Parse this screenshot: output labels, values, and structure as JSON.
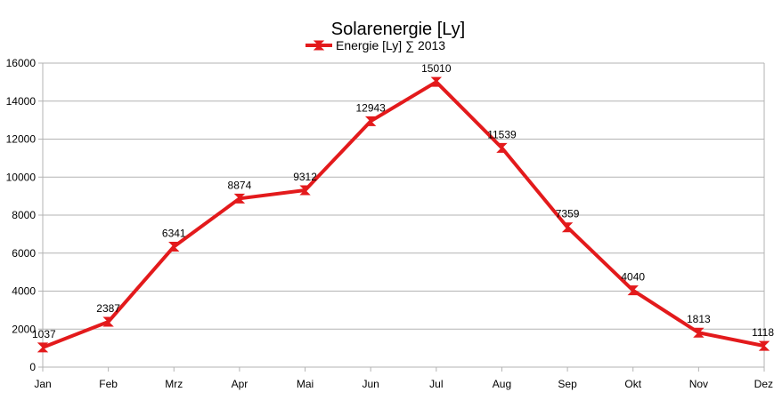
{
  "chart_data": {
    "type": "line",
    "title": "Solarenergie [Ly]",
    "xlabel": "",
    "ylabel": "",
    "categories": [
      "Jan",
      "Feb",
      "Mrz",
      "Apr",
      "Mai",
      "Jun",
      "Jul",
      "Aug",
      "Sep",
      "Okt",
      "Nov",
      "Dez"
    ],
    "series": [
      {
        "name": "Energie [Ly] ∑ 2013",
        "values": [
          1037,
          2387,
          6341,
          8874,
          9312,
          12943,
          15010,
          11539,
          7359,
          4040,
          1813,
          1118
        ],
        "color": "#e31a1c"
      }
    ],
    "ylim": [
      0,
      16000
    ],
    "yticks": [
      0,
      2000,
      4000,
      6000,
      8000,
      10000,
      12000,
      14000,
      16000
    ],
    "grid": true,
    "legend_position": "top",
    "data_labels": true,
    "colors": {
      "line": "#e31a1c",
      "grid": "#b3b3b3",
      "text": "#000000"
    }
  }
}
